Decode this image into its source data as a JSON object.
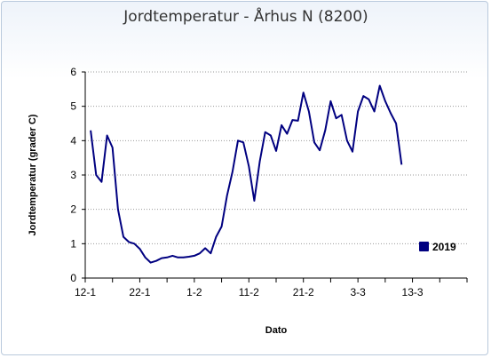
{
  "chart_data": {
    "type": "line",
    "title": "Jordtemperatur - Århus N (8200)",
    "xlabel": "Dato",
    "ylabel": "Jordtemperatur (grader C)",
    "ylim": [
      0,
      6
    ],
    "yticks": [
      0,
      1,
      2,
      3,
      4,
      5,
      6
    ],
    "xlim": [
      "2019-01-12",
      "2019-03-23"
    ],
    "xticks": [
      {
        "date": "2019-01-12",
        "label": "12-1"
      },
      {
        "date": "2019-01-22",
        "label": "22-1"
      },
      {
        "date": "2019-02-01",
        "label": "1-2"
      },
      {
        "date": "2019-02-11",
        "label": "11-2"
      },
      {
        "date": "2019-02-21",
        "label": "21-2"
      },
      {
        "date": "2019-03-03",
        "label": "3-3"
      },
      {
        "date": "2019-03-13",
        "label": "13-3"
      }
    ],
    "grid": "horizontal dotted",
    "legend": "right",
    "colors": {
      "series": "#000080",
      "grid": "#999999",
      "axis": "#000000"
    },
    "series": [
      {
        "name": "2019",
        "points": [
          [
            "2019-01-13",
            4.3
          ],
          [
            "2019-01-14",
            3.0
          ],
          [
            "2019-01-15",
            2.8
          ],
          [
            "2019-01-16",
            4.15
          ],
          [
            "2019-01-17",
            3.8
          ],
          [
            "2019-01-18",
            2.0
          ],
          [
            "2019-01-19",
            1.2
          ],
          [
            "2019-01-20",
            1.05
          ],
          [
            "2019-01-21",
            1.0
          ],
          [
            "2019-01-22",
            0.85
          ],
          [
            "2019-01-23",
            0.6
          ],
          [
            "2019-01-24",
            0.45
          ],
          [
            "2019-01-25",
            0.5
          ],
          [
            "2019-01-26",
            0.58
          ],
          [
            "2019-01-27",
            0.6
          ],
          [
            "2019-01-28",
            0.65
          ],
          [
            "2019-01-29",
            0.6
          ],
          [
            "2019-01-30",
            0.6
          ],
          [
            "2019-01-31",
            0.62
          ],
          [
            "2019-02-01",
            0.65
          ],
          [
            "2019-02-02",
            0.72
          ],
          [
            "2019-02-03",
            0.87
          ],
          [
            "2019-02-04",
            0.72
          ],
          [
            "2019-02-05",
            1.2
          ],
          [
            "2019-02-06",
            1.5
          ],
          [
            "2019-02-07",
            2.4
          ],
          [
            "2019-02-08",
            3.1
          ],
          [
            "2019-02-09",
            4.0
          ],
          [
            "2019-02-10",
            3.95
          ],
          [
            "2019-02-11",
            3.25
          ],
          [
            "2019-02-12",
            2.25
          ],
          [
            "2019-02-13",
            3.4
          ],
          [
            "2019-02-14",
            4.25
          ],
          [
            "2019-02-15",
            4.15
          ],
          [
            "2019-02-16",
            3.7
          ],
          [
            "2019-02-17",
            4.45
          ],
          [
            "2019-02-18",
            4.2
          ],
          [
            "2019-02-19",
            4.6
          ],
          [
            "2019-02-20",
            4.58
          ],
          [
            "2019-02-21",
            5.4
          ],
          [
            "2019-02-22",
            4.85
          ],
          [
            "2019-02-23",
            3.95
          ],
          [
            "2019-02-24",
            3.72
          ],
          [
            "2019-02-25",
            4.3
          ],
          [
            "2019-02-26",
            5.15
          ],
          [
            "2019-02-27",
            4.65
          ],
          [
            "2019-02-28",
            4.75
          ],
          [
            "2019-03-01",
            4.0
          ],
          [
            "2019-03-02",
            3.68
          ],
          [
            "2019-03-03",
            4.85
          ],
          [
            "2019-03-04",
            5.3
          ],
          [
            "2019-03-05",
            5.2
          ],
          [
            "2019-03-06",
            4.85
          ],
          [
            "2019-03-07",
            5.6
          ],
          [
            "2019-03-08",
            5.15
          ],
          [
            "2019-03-09",
            4.8
          ],
          [
            "2019-03-10",
            4.5
          ],
          [
            "2019-03-11",
            3.3
          ]
        ]
      }
    ]
  }
}
